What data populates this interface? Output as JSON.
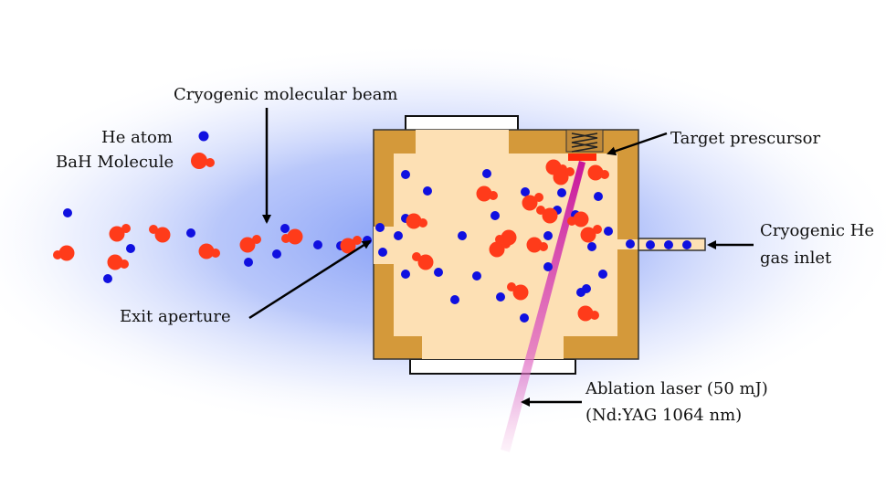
{
  "labels": {
    "beam": "Cryogenic molecular beam",
    "he_atom": "He atom",
    "bah_molecule": "BaH Molecule",
    "target": "Target prescursor",
    "gas_inlet_line1": "Cryogenic He",
    "gas_inlet_line2": "gas inlet",
    "exit_aperture": "Exit aperture",
    "laser_line1": "Ablation laser (50 mJ)",
    "laser_line2": "(Nd:YAG 1064 nm)"
  },
  "colors": {
    "he_atom": "#1010e0",
    "bah_molecule": "#ff3b1a",
    "cell_wall": "#d4993a",
    "cell_interior": "#fde0b4",
    "laser": "#d41f9c",
    "target_plate": "#ff2a0a",
    "glow": "#6e8cf5"
  }
}
